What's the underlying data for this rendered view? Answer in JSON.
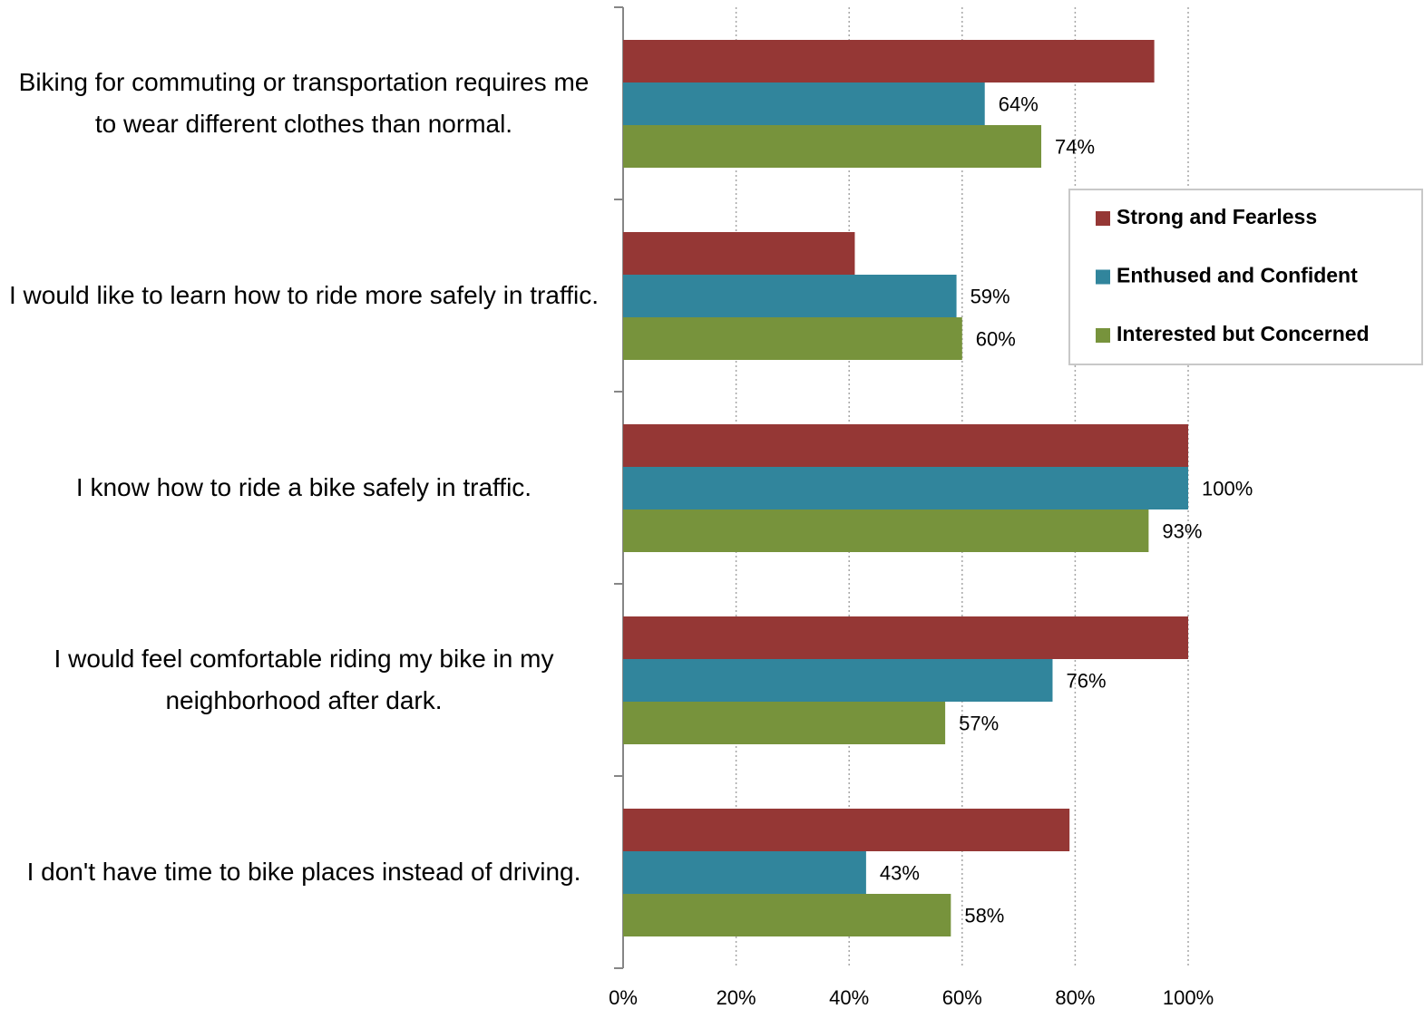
{
  "chart_data": {
    "type": "hbar",
    "categories": [
      "Biking for commuting or transportation requires me to wear different clothes than normal.",
      "I would like to learn how to ride more safely in traffic.",
      "I know how to ride a bike safely in traffic.",
      "I would feel comfortable riding my bike in my neighborhood after dark.",
      "I don't have time to bike places instead of driving."
    ],
    "series": [
      {
        "name": "Strong and Fearless",
        "color": "#953735",
        "values": [
          94,
          41,
          100,
          100,
          79
        ]
      },
      {
        "name": "Enthused and Confident",
        "color": "#31859c",
        "values": [
          64,
          59,
          100,
          76,
          43
        ],
        "value_labels": [
          "64%",
          "59%",
          "100%",
          "76%",
          "43%"
        ]
      },
      {
        "name": "Interested but Concerned",
        "color": "#77933c",
        "values": [
          74,
          60,
          93,
          57,
          58
        ],
        "value_labels": [
          "74%",
          "60%",
          "93%",
          "57%",
          "58%"
        ]
      }
    ],
    "xlim": [
      0,
      100
    ],
    "xticks": [
      {
        "value": 0,
        "label": "0%"
      },
      {
        "value": 20,
        "label": "20%"
      },
      {
        "value": 40,
        "label": "40%"
      },
      {
        "value": 60,
        "label": "60%"
      },
      {
        "value": 80,
        "label": "80%"
      },
      {
        "value": 100,
        "label": "100%"
      }
    ],
    "grid": true,
    "legend": "right"
  }
}
